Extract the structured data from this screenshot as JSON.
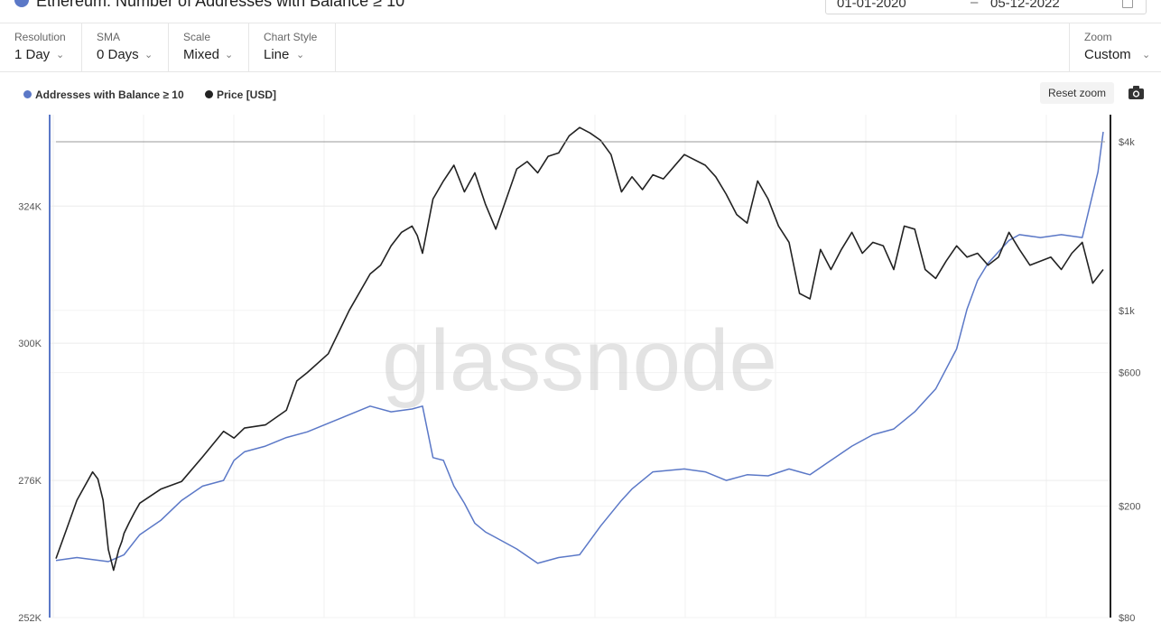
{
  "header": {
    "title": "Ethereum: Number of Addresses with Balance ≥ 10",
    "date_from": "01-01-2020",
    "date_separator": "–",
    "date_to": "05-12-2022"
  },
  "controls": [
    {
      "key": "resolution",
      "label": "Resolution",
      "value": "1 Day"
    },
    {
      "key": "sma",
      "label": "SMA",
      "value": "0 Days"
    },
    {
      "key": "scale",
      "label": "Scale",
      "value": "Mixed"
    },
    {
      "key": "chart-style",
      "label": "Chart Style",
      "value": "Line"
    }
  ],
  "zoom": {
    "label": "Zoom",
    "value": "Custom"
  },
  "legend": [
    {
      "label": "Addresses with Balance ≥ 10",
      "color": "#5b78c7"
    },
    {
      "label": "Price [USD]",
      "color": "#222222"
    }
  ],
  "reset_zoom_label": "Reset zoom",
  "icons": {
    "title": "eth-info-icon",
    "camera": "camera-icon",
    "calendar": "calendar-icon",
    "chevron": "chevron-down-icon"
  },
  "watermark": "glassnode",
  "chart_data": {
    "type": "line",
    "left_axis": {
      "ticks": [
        252000,
        276000,
        300000,
        324000
      ],
      "labels": [
        "252K",
        "276K",
        "300K",
        "324K"
      ],
      "range": [
        252000,
        340000
      ]
    },
    "right_axis": {
      "scale": "log",
      "ticks": [
        80,
        200,
        600,
        1000,
        4000
      ],
      "labels": [
        "$80",
        "$200",
        "$600",
        "$1k",
        "$4k"
      ],
      "range": [
        80,
        5000
      ]
    },
    "grid": true,
    "legend_position": "top-left",
    "series": [
      {
        "name": "Addresses with Balance ≥ 10",
        "axis": "left",
        "color": "#5b78c7",
        "x": [
          0,
          0.02,
          0.05,
          0.065,
          0.08,
          0.1,
          0.12,
          0.14,
          0.16,
          0.17,
          0.18,
          0.2,
          0.22,
          0.24,
          0.26,
          0.28,
          0.3,
          0.32,
          0.34,
          0.35,
          0.355,
          0.36,
          0.37,
          0.38,
          0.39,
          0.4,
          0.41,
          0.42,
          0.44,
          0.46,
          0.48,
          0.5,
          0.52,
          0.54,
          0.55,
          0.56,
          0.57,
          0.6,
          0.62,
          0.64,
          0.66,
          0.68,
          0.7,
          0.72,
          0.74,
          0.76,
          0.78,
          0.8,
          0.82,
          0.84,
          0.86,
          0.87,
          0.88,
          0.89,
          0.9,
          0.91,
          0.92,
          0.94,
          0.96,
          0.98,
          0.995,
          1.0
        ],
        "y": [
          262000,
          262500,
          261800,
          263000,
          266500,
          269000,
          272500,
          275000,
          276000,
          279500,
          281000,
          282000,
          283500,
          284500,
          286000,
          287500,
          289000,
          288000,
          288500,
          289000,
          284500,
          280000,
          279500,
          275000,
          272000,
          268500,
          267000,
          266000,
          264000,
          261500,
          262500,
          263000,
          268000,
          272500,
          274500,
          276000,
          277500,
          278000,
          277500,
          276000,
          277000,
          276800,
          278000,
          277000,
          279500,
          282000,
          284000,
          285000,
          288000,
          292000,
          299000,
          306000,
          311000,
          314000,
          316000,
          318000,
          319000,
          318500,
          319000,
          318500,
          330000,
          337000
        ]
      },
      {
        "name": "Price [USD]",
        "axis": "right",
        "color": "#222222",
        "x": [
          0,
          0.01,
          0.02,
          0.035,
          0.04,
          0.045,
          0.05,
          0.055,
          0.06,
          0.063,
          0.065,
          0.07,
          0.075,
          0.08,
          0.1,
          0.12,
          0.14,
          0.16,
          0.17,
          0.18,
          0.2,
          0.22,
          0.23,
          0.24,
          0.26,
          0.28,
          0.3,
          0.31,
          0.32,
          0.33,
          0.34,
          0.345,
          0.35,
          0.36,
          0.37,
          0.38,
          0.39,
          0.4,
          0.41,
          0.42,
          0.43,
          0.44,
          0.45,
          0.46,
          0.47,
          0.48,
          0.49,
          0.5,
          0.51,
          0.52,
          0.53,
          0.54,
          0.55,
          0.56,
          0.57,
          0.58,
          0.6,
          0.62,
          0.63,
          0.64,
          0.65,
          0.66,
          0.67,
          0.68,
          0.69,
          0.7,
          0.71,
          0.72,
          0.73,
          0.74,
          0.75,
          0.76,
          0.77,
          0.78,
          0.79,
          0.8,
          0.81,
          0.82,
          0.83,
          0.84,
          0.85,
          0.86,
          0.87,
          0.88,
          0.89,
          0.9,
          0.91,
          0.92,
          0.93,
          0.94,
          0.95,
          0.96,
          0.97,
          0.98,
          0.99,
          1.0
        ],
        "y": [
          130,
          165,
          210,
          265,
          250,
          210,
          140,
          118,
          140,
          150,
          160,
          175,
          190,
          205,
          230,
          245,
          300,
          370,
          350,
          380,
          390,
          440,
          560,
          600,
          700,
          1000,
          1350,
          1450,
          1700,
          1900,
          2000,
          1850,
          1600,
          2500,
          2900,
          3300,
          2650,
          3100,
          2400,
          1950,
          2500,
          3200,
          3400,
          3100,
          3550,
          3650,
          4200,
          4500,
          4300,
          4050,
          3600,
          2650,
          3000,
          2700,
          3050,
          2950,
          3600,
          3300,
          3000,
          2600,
          2200,
          2050,
          2900,
          2500,
          2000,
          1750,
          1150,
          1100,
          1650,
          1400,
          1650,
          1900,
          1600,
          1750,
          1700,
          1400,
          2000,
          1950,
          1400,
          1300,
          1500,
          1700,
          1550,
          1600,
          1450,
          1550,
          1900,
          1650,
          1450,
          1500,
          1550,
          1400,
          1600,
          1750,
          1250,
          1400
        ]
      }
    ]
  }
}
